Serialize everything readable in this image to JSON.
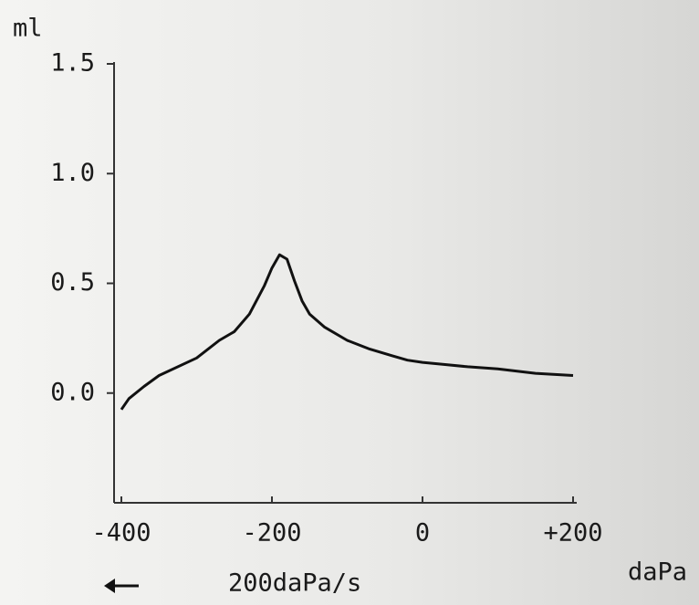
{
  "chart_data": {
    "type": "line",
    "y_label": "ml",
    "x_label": "daPa",
    "annotation": "200daPa/s",
    "x": [
      -400,
      -390,
      -370,
      -350,
      -300,
      -270,
      -250,
      -230,
      -210,
      -200,
      -190,
      -180,
      -170,
      -160,
      -150,
      -130,
      -100,
      -70,
      -40,
      -20,
      0,
      30,
      60,
      100,
      150,
      200
    ],
    "values": [
      -0.075,
      -0.025,
      0.03,
      0.08,
      0.16,
      0.24,
      0.28,
      0.36,
      0.49,
      0.57,
      0.63,
      0.61,
      0.51,
      0.42,
      0.36,
      0.3,
      0.24,
      0.2,
      0.17,
      0.15,
      0.14,
      0.13,
      0.12,
      0.11,
      0.09,
      0.08
    ],
    "color": "#111111",
    "xlim": [
      -400,
      200
    ],
    "xticks": [
      -400,
      -200,
      0,
      {
        "value": 200,
        "label": "+200"
      }
    ],
    "ylim": [
      -0.5,
      1.5
    ],
    "yticks": [
      {
        "value": 0,
        "label": "0.0"
      },
      0.5,
      {
        "value": 1,
        "label": "1.0"
      },
      1.5
    ],
    "grid": false
  }
}
